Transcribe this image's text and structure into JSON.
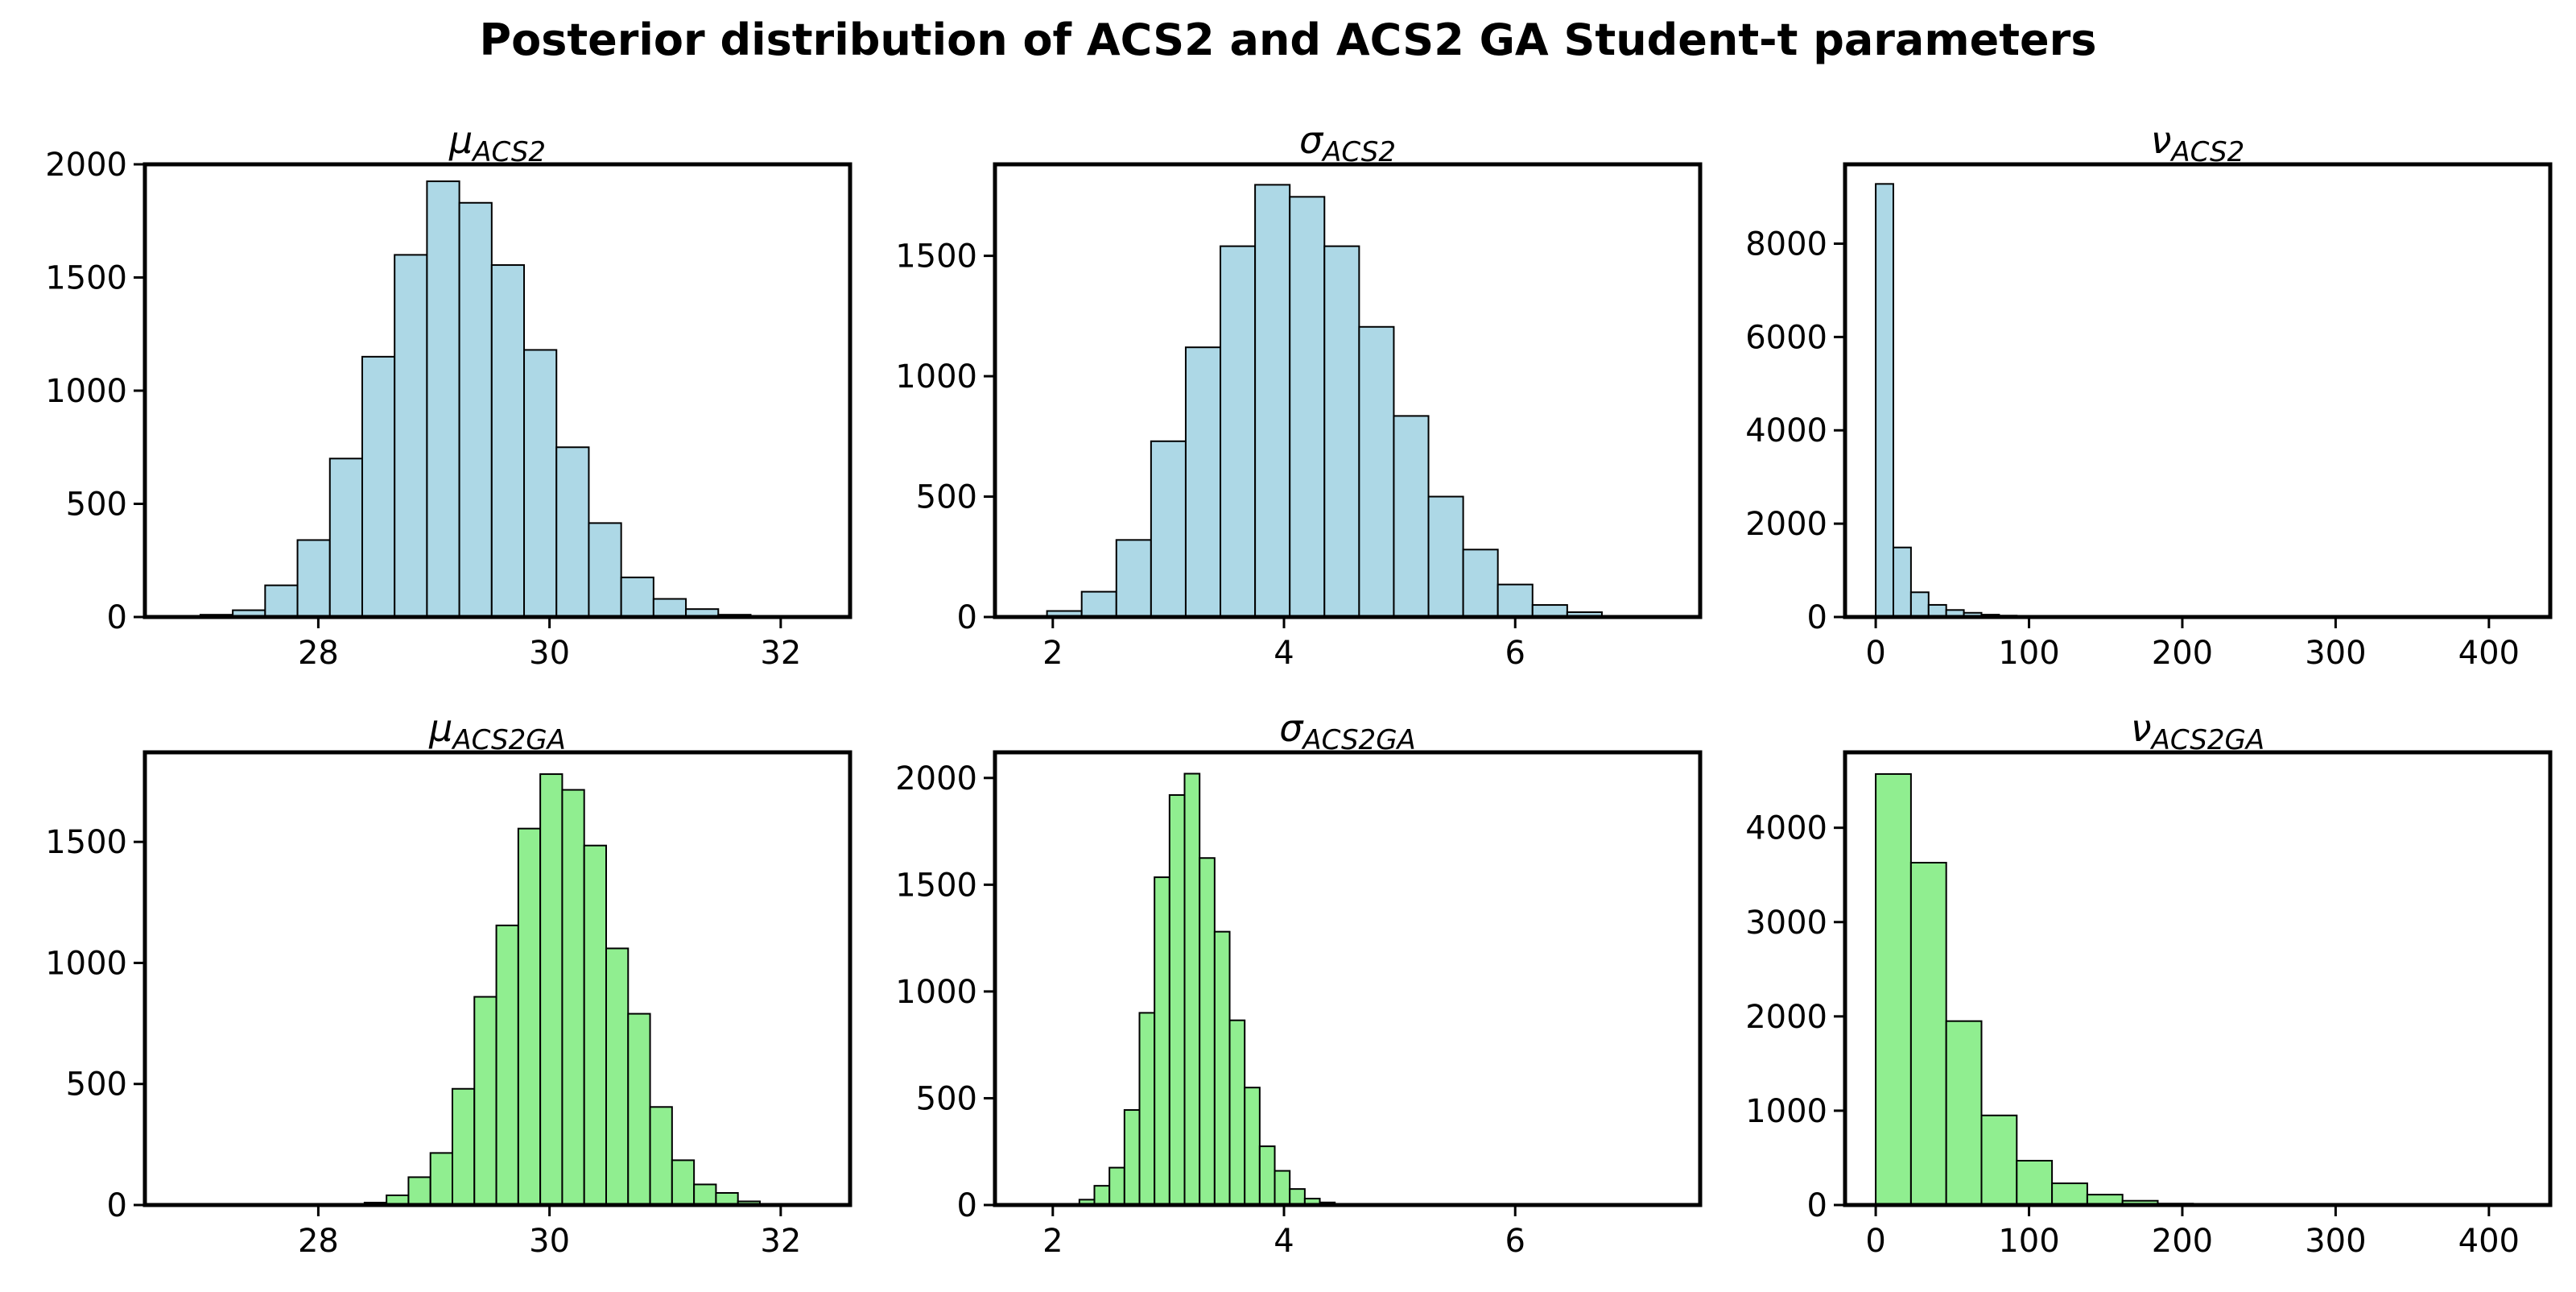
{
  "figure": {
    "title": "Posterior distribution of ACS2 and ACS2 GA Student-t parameters"
  },
  "colors": {
    "acs2": "#add8e6",
    "acs2ga": "#90ee90",
    "edge": "#000000"
  },
  "chart_data": [
    {
      "type": "bar",
      "title": "μACS2",
      "title_symbol": "μ",
      "title_subscript": "ACS2",
      "color": "#add8e6",
      "xlim": [
        26.5,
        32.6
      ],
      "ylim": [
        0,
        2000
      ],
      "xticks": [
        28,
        30,
        32
      ],
      "yticks": [
        0,
        500,
        1000,
        1500,
        2000
      ],
      "bin_edges": [
        26.98,
        27.26,
        27.54,
        27.82,
        28.1,
        28.38,
        28.66,
        28.94,
        29.22,
        29.5,
        29.78,
        30.06,
        30.34,
        30.62,
        30.9,
        31.18,
        31.46,
        31.74,
        32.02
      ],
      "counts": [
        10,
        30,
        140,
        340,
        700,
        1150,
        1600,
        1925,
        1830,
        1555,
        1180,
        750,
        415,
        175,
        80,
        35,
        10,
        3
      ]
    },
    {
      "type": "bar",
      "title": "σACS2",
      "title_symbol": "σ",
      "title_subscript": "ACS2",
      "color": "#add8e6",
      "xlim": [
        1.5,
        7.6
      ],
      "ylim": [
        0,
        1880
      ],
      "xticks": [
        2,
        4,
        6
      ],
      "yticks": [
        0,
        500,
        1000,
        1500
      ],
      "bin_edges": [
        1.65,
        1.95,
        2.25,
        2.55,
        2.85,
        3.15,
        3.45,
        3.75,
        4.05,
        4.35,
        4.65,
        4.95,
        5.25,
        5.55,
        5.85,
        6.15,
        6.45,
        6.75
      ],
      "counts": [
        5,
        25,
        105,
        320,
        730,
        1120,
        1540,
        1795,
        1745,
        1540,
        1205,
        835,
        500,
        280,
        135,
        50,
        20
      ]
    },
    {
      "type": "bar",
      "title": "νACS2",
      "title_symbol": "ν",
      "title_subscript": "ACS2",
      "color": "#add8e6",
      "xlim": [
        -20,
        440
      ],
      "ylim": [
        0,
        9700
      ],
      "xticks": [
        0,
        100,
        200,
        300,
        400
      ],
      "yticks": [
        0,
        2000,
        4000,
        6000,
        8000
      ],
      "bin_edges": [
        0,
        11.5,
        23,
        34.5,
        46,
        57.5,
        69,
        80.5,
        92,
        103.5,
        115,
        126.5,
        138,
        149.5,
        161,
        172.5,
        184,
        195.5,
        207,
        218.5,
        230,
        241.5,
        253,
        264.5,
        276,
        287.5,
        299,
        310.5,
        322,
        333.5,
        345,
        356.5,
        368,
        379.5,
        391,
        402.5,
        414
      ],
      "counts": [
        9280,
        1490,
        530,
        260,
        150,
        90,
        50,
        30,
        20,
        12,
        8,
        5,
        4,
        3,
        2,
        2,
        1,
        1,
        1,
        1,
        0,
        0,
        0,
        0,
        0,
        0,
        0,
        0,
        0,
        0,
        0,
        0,
        0,
        0,
        0,
        0
      ]
    },
    {
      "type": "bar",
      "title": "μACS2GA",
      "title_symbol": "μ",
      "title_subscript": "ACS2GA",
      "color": "#90ee90",
      "xlim": [
        26.5,
        32.6
      ],
      "ylim": [
        0,
        1870
      ],
      "xticks": [
        28,
        30,
        32
      ],
      "yticks": [
        0,
        500,
        1000,
        1500
      ],
      "bin_edges": [
        28.4,
        28.59,
        28.78,
        28.97,
        29.16,
        29.35,
        29.54,
        29.73,
        29.92,
        30.11,
        30.3,
        30.49,
        30.68,
        30.87,
        31.06,
        31.25,
        31.44,
        31.63,
        31.82,
        32.01,
        32.2
      ],
      "counts": [
        10,
        40,
        115,
        215,
        480,
        860,
        1155,
        1555,
        1780,
        1715,
        1485,
        1060,
        790,
        405,
        185,
        85,
        50,
        15,
        5,
        2
      ]
    },
    {
      "type": "bar",
      "title": "σACS2GA",
      "title_symbol": "σ",
      "title_subscript": "ACS2GA",
      "color": "#90ee90",
      "xlim": [
        1.5,
        7.6
      ],
      "ylim": [
        0,
        2120
      ],
      "xticks": [
        2,
        4,
        6
      ],
      "yticks": [
        0,
        500,
        1000,
        1500,
        2000
      ],
      "bin_edges": [
        2.1,
        2.23,
        2.36,
        2.49,
        2.62,
        2.75,
        2.88,
        3.01,
        3.14,
        3.27,
        3.4,
        3.53,
        3.66,
        3.79,
        3.92,
        4.05,
        4.18,
        4.31,
        4.44,
        4.57,
        4.7,
        4.83,
        4.96
      ],
      "counts": [
        5,
        25,
        90,
        175,
        445,
        900,
        1535,
        1920,
        2020,
        1625,
        1280,
        865,
        550,
        275,
        160,
        75,
        30,
        12,
        5,
        2,
        1,
        1
      ]
    },
    {
      "type": "bar",
      "title": "νACS2GA",
      "title_symbol": "ν",
      "title_subscript": "ACS2GA",
      "color": "#90ee90",
      "xlim": [
        -20,
        440
      ],
      "ylim": [
        0,
        4800
      ],
      "xticks": [
        0,
        100,
        200,
        300,
        400
      ],
      "yticks": [
        0,
        1000,
        2000,
        3000,
        4000
      ],
      "bin_edges": [
        0,
        23,
        46,
        69,
        92,
        115,
        138,
        161,
        184,
        207,
        230,
        253,
        276,
        299,
        322,
        345,
        368,
        391,
        414
      ],
      "counts": [
        4570,
        3630,
        1950,
        950,
        470,
        230,
        110,
        45,
        15,
        8,
        4,
        2,
        1,
        1,
        0,
        0,
        0,
        1
      ]
    }
  ]
}
